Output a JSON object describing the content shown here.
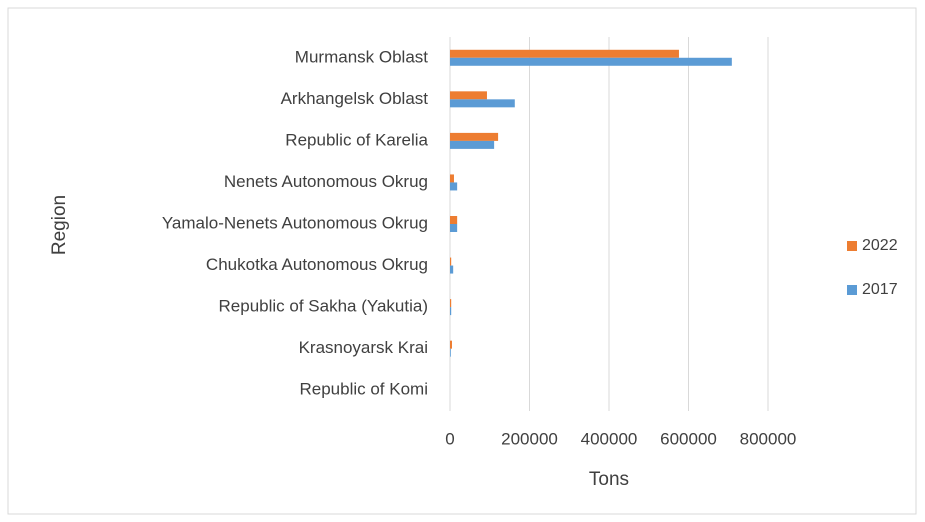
{
  "chart_data": {
    "type": "hbar",
    "x_label": "Tons",
    "y_label": "Region",
    "categories": [
      "Murmansk Oblast",
      "Arkhangelsk Oblast",
      "Republic of Karelia",
      "Nenets Autonomous Okrug",
      "Yamalo-Nenets Autonomous Okrug",
      "Chukotka Autonomous Okrug",
      "Republic of Sakha (Yakutia)",
      "Krasnoyarsk Krai",
      "Republic of Komi"
    ],
    "series": [
      {
        "name": "2022",
        "color": "#ed7d31",
        "values": [
          576000,
          93000,
          121000,
          10000,
          18000,
          3000,
          3000,
          5000,
          0
        ]
      },
      {
        "name": "2017",
        "color": "#5b9bd5",
        "values": [
          709000,
          163000,
          111000,
          18000,
          18000,
          8000,
          3000,
          2000,
          0
        ]
      }
    ],
    "xlim": [
      0,
      800000
    ],
    "xticks": [
      0,
      200000,
      400000,
      600000,
      800000
    ],
    "grid": true,
    "legend": "right"
  }
}
